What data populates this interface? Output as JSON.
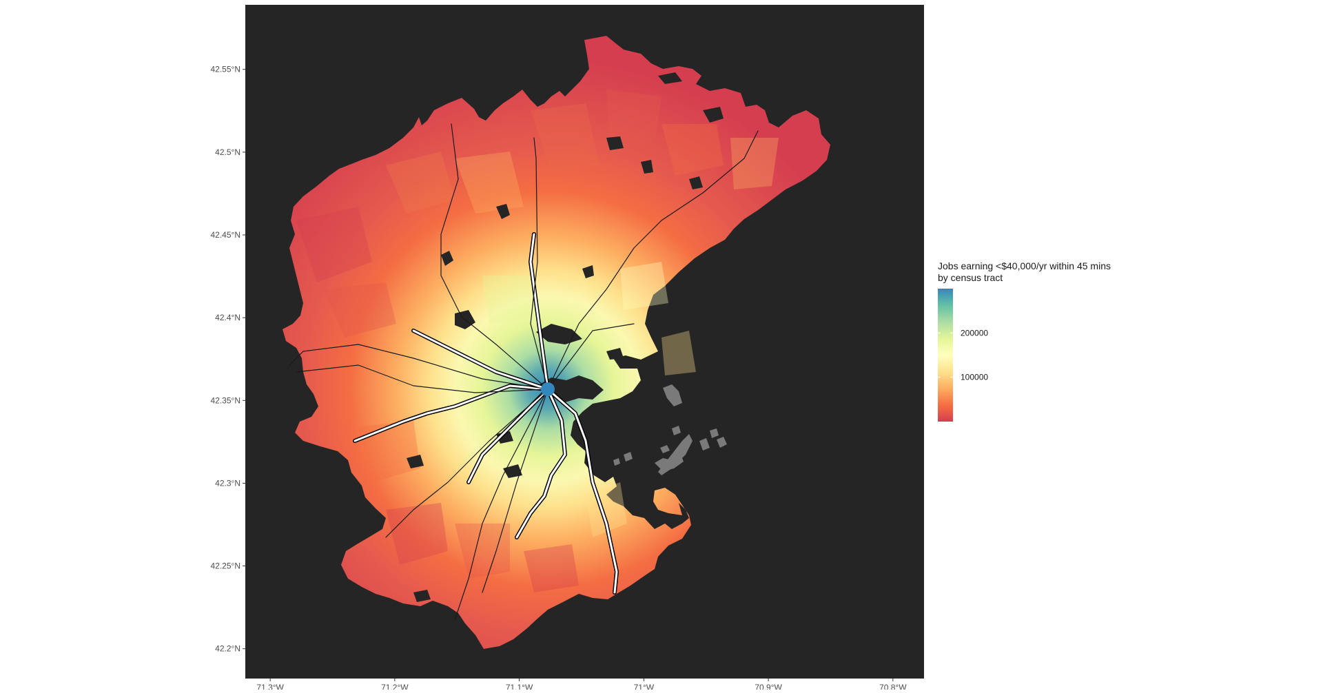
{
  "chart_data": {
    "type": "choropleth-map",
    "title": "",
    "legend": {
      "title_lines": [
        "Jobs earning <$40,000/yr within 45 mins",
        "by census tract"
      ],
      "tick_labels": [
        "200000",
        "100000"
      ],
      "tick_values": [
        200000,
        100000
      ],
      "range": [
        0,
        300000
      ],
      "palette": [
        "#d53e4f",
        "#f46d43",
        "#fdae61",
        "#fee08b",
        "#ffffbf",
        "#e6f598",
        "#abdda4",
        "#66c2a5",
        "#3288bd"
      ],
      "placement": "right"
    },
    "x_axis": {
      "ticks": [
        {
          "value": -71.3,
          "label": "71.3°W"
        },
        {
          "value": -71.2,
          "label": "71.2°W"
        },
        {
          "value": -71.1,
          "label": "71.1°W"
        },
        {
          "value": -71.0,
          "label": "71°W"
        },
        {
          "value": -70.9,
          "label": "70.9°W"
        },
        {
          "value": -70.8,
          "label": "70.8°W"
        }
      ],
      "range": [
        -71.32,
        -70.775
      ]
    },
    "y_axis": {
      "ticks": [
        {
          "value": 42.55,
          "label": "42.55°N"
        },
        {
          "value": 42.5,
          "label": "42.5°N"
        },
        {
          "value": 42.45,
          "label": "42.45°N"
        },
        {
          "value": 42.4,
          "label": "42.4°N"
        },
        {
          "value": 42.35,
          "label": "42.35°N"
        },
        {
          "value": 42.3,
          "label": "42.3°N"
        },
        {
          "value": 42.25,
          "label": "42.25°N"
        },
        {
          "value": 42.2,
          "label": "42.2°N"
        }
      ],
      "range": [
        42.182,
        42.589
      ]
    },
    "colors": {
      "panel_background": "#252525",
      "plot_background": "#ffffff",
      "transit_lines": "#ffffff",
      "tick_label": "#4d4d4d",
      "islands": "#7a7a7a"
    },
    "grid": false
  }
}
